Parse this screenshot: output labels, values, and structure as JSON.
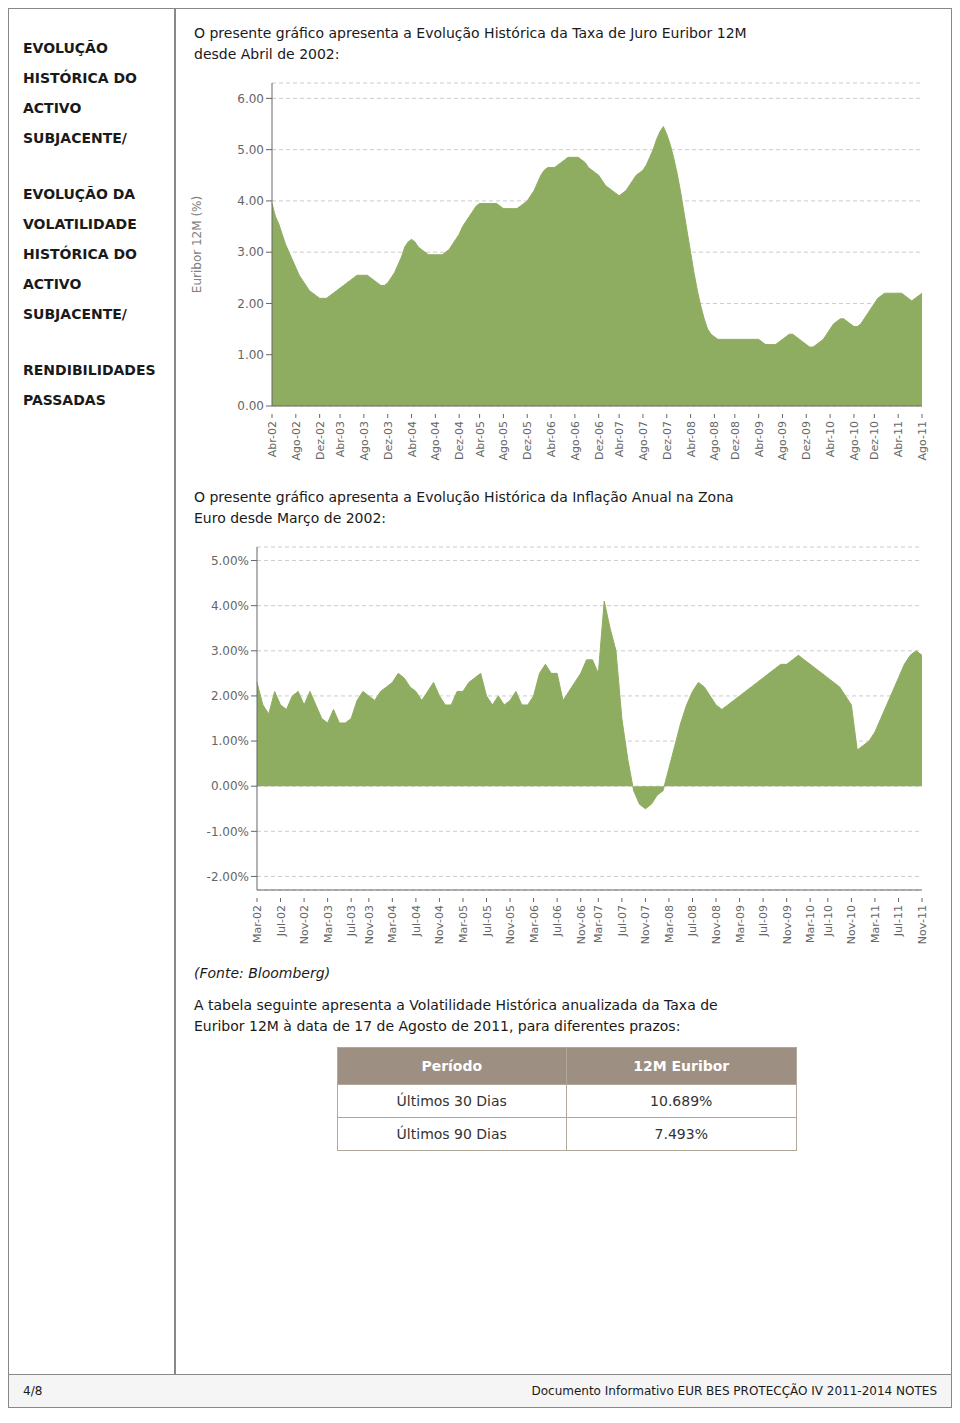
{
  "chart_data": [
    {
      "type": "area",
      "title": "O presente gráfico apresenta a Evolução Histórica da Taxa de Juro Euribor 12M\ndesde Abril de 2002:",
      "ylabel": "Euribor 12M (%)",
      "categories": [
        "Abr-02",
        null,
        null,
        null,
        null,
        null,
        null,
        "Ago-02",
        null,
        null,
        null,
        null,
        null,
        null,
        "Dez-02",
        null,
        null,
        null,
        null,
        null,
        "Abr-03",
        null,
        null,
        null,
        null,
        null,
        null,
        "Ago-03",
        null,
        null,
        null,
        null,
        null,
        null,
        "Dez-03",
        null,
        null,
        null,
        null,
        null,
        null,
        "Abr-04",
        null,
        null,
        null,
        null,
        null,
        null,
        "Ago-04",
        null,
        null,
        null,
        null,
        null,
        null,
        "Dez-04",
        null,
        null,
        null,
        null,
        null,
        "Abr-05",
        null,
        null,
        null,
        null,
        null,
        null,
        "Ago-05",
        null,
        null,
        null,
        null,
        null,
        null,
        "Dez-05",
        null,
        null,
        null,
        null,
        null,
        null,
        "Abr-06",
        null,
        null,
        null,
        null,
        null,
        null,
        "Ago-06",
        null,
        null,
        null,
        null,
        null,
        null,
        "Dez-06",
        null,
        null,
        null,
        null,
        null,
        "Abr-07",
        null,
        null,
        null,
        null,
        null,
        null,
        "Ago-07",
        null,
        null,
        null,
        null,
        null,
        null,
        "Dez-07",
        null,
        null,
        null,
        null,
        null,
        null,
        "Abr-08",
        null,
        null,
        null,
        null,
        null,
        null,
        "Ago-08",
        null,
        null,
        null,
        null,
        null,
        "Dez-08",
        null,
        null,
        null,
        null,
        null,
        null,
        "Abr-09",
        null,
        null,
        null,
        null,
        null,
        null,
        "Ago-09",
        null,
        null,
        null,
        null,
        null,
        null,
        "Dez-09",
        null,
        null,
        null,
        null,
        null,
        null,
        "Abr-10",
        null,
        null,
        null,
        null,
        null,
        null,
        "Ago-10",
        null,
        null,
        null,
        null,
        null,
        "Dez-10",
        null,
        null,
        null,
        null,
        null,
        null,
        "Abr-11",
        null,
        null,
        null,
        null,
        null,
        null,
        "Ago-11"
      ],
      "values": [
        3.95,
        3.7,
        3.55,
        3.35,
        3.15,
        3.0,
        2.85,
        2.7,
        2.55,
        2.45,
        2.35,
        2.25,
        2.2,
        2.15,
        2.1,
        2.1,
        2.1,
        2.15,
        2.2,
        2.25,
        2.3,
        2.35,
        2.4,
        2.45,
        2.5,
        2.55,
        2.55,
        2.55,
        2.55,
        2.5,
        2.45,
        2.4,
        2.35,
        2.35,
        2.4,
        2.5,
        2.6,
        2.75,
        2.9,
        3.1,
        3.2,
        3.25,
        3.2,
        3.1,
        3.05,
        3.0,
        2.95,
        2.95,
        2.95,
        2.95,
        2.95,
        3.0,
        3.05,
        3.15,
        3.25,
        3.35,
        3.5,
        3.6,
        3.7,
        3.8,
        3.9,
        3.95,
        3.95,
        3.95,
        3.95,
        3.95,
        3.95,
        3.9,
        3.85,
        3.85,
        3.85,
        3.85,
        3.85,
        3.9,
        3.95,
        4.0,
        4.1,
        4.2,
        4.35,
        4.5,
        4.6,
        4.65,
        4.65,
        4.65,
        4.7,
        4.75,
        4.8,
        4.85,
        4.85,
        4.85,
        4.85,
        4.8,
        4.75,
        4.65,
        4.6,
        4.55,
        4.5,
        4.4,
        4.3,
        4.25,
        4.2,
        4.15,
        4.1,
        4.15,
        4.2,
        4.3,
        4.4,
        4.5,
        4.55,
        4.6,
        4.7,
        4.85,
        5.0,
        5.2,
        5.35,
        5.45,
        5.3,
        5.1,
        4.85,
        4.55,
        4.2,
        3.8,
        3.4,
        3.0,
        2.6,
        2.25,
        1.95,
        1.7,
        1.5,
        1.4,
        1.35,
        1.3,
        1.3,
        1.3,
        1.3,
        1.3,
        1.3,
        1.3,
        1.3,
        1.3,
        1.3,
        1.3,
        1.3,
        1.3,
        1.25,
        1.2,
        1.2,
        1.2,
        1.2,
        1.25,
        1.3,
        1.35,
        1.4,
        1.4,
        1.35,
        1.3,
        1.25,
        1.2,
        1.15,
        1.15,
        1.2,
        1.25,
        1.3,
        1.4,
        1.5,
        1.6,
        1.65,
        1.7,
        1.7,
        1.65,
        1.6,
        1.55,
        1.55,
        1.6,
        1.7,
        1.8,
        1.9,
        2.0,
        2.1,
        2.15,
        2.2,
        2.2,
        2.2,
        2.2,
        2.2,
        2.2,
        2.15,
        2.1,
        2.05,
        2.1,
        2.15,
        2.2
      ],
      "color": "#8fad60",
      "ylim": [
        0,
        6.3
      ],
      "yticks": [
        {
          "value": 0,
          "label": "0.00"
        },
        {
          "value": 1,
          "label": "1.00"
        },
        {
          "value": 2,
          "label": "2.00"
        },
        {
          "value": 3,
          "label": "3.00"
        },
        {
          "value": 4,
          "label": "4.00"
        },
        {
          "value": 5,
          "label": "5.00"
        },
        {
          "value": 6,
          "label": "6.00"
        }
      ],
      "grid": true
    },
    {
      "type": "area",
      "title": "O presente gráfico apresenta a Evolução Histórica da Inflação Anual na Zona\nEuro desde Março de 2002:",
      "categories": [
        "Mar-02",
        null,
        null,
        null,
        "Jul-02",
        null,
        null,
        null,
        "Nov-02",
        null,
        null,
        null,
        "Mar-03",
        null,
        null,
        null,
        "Jul-03",
        null,
        null,
        "Nov-03",
        null,
        null,
        null,
        "Mar-04",
        null,
        null,
        null,
        "Jul-04",
        null,
        null,
        null,
        "Nov-04",
        null,
        null,
        null,
        "Mar-05",
        null,
        null,
        null,
        "Jul-05",
        null,
        null,
        null,
        "Nov-05",
        null,
        null,
        null,
        "Mar-06",
        null,
        null,
        null,
        "Jul-06",
        null,
        null,
        null,
        "Nov-06",
        null,
        null,
        "Mar-07",
        null,
        null,
        null,
        "Jul-07",
        null,
        null,
        null,
        "Nov-07",
        null,
        null,
        null,
        "Mar-08",
        null,
        null,
        null,
        "Jul-08",
        null,
        null,
        null,
        "Nov-08",
        null,
        null,
        null,
        "Mar-09",
        null,
        null,
        null,
        "Jul-09",
        null,
        null,
        null,
        "Nov-09",
        null,
        null,
        null,
        "Mar-10",
        null,
        null,
        "Jul-10",
        null,
        null,
        null,
        "Nov-10",
        null,
        null,
        null,
        "Mar-11",
        null,
        null,
        null,
        "Jul-11",
        null,
        null,
        null,
        "Nov-11"
      ],
      "values": [
        2.3,
        1.8,
        1.6,
        2.1,
        1.8,
        1.7,
        2.0,
        2.1,
        1.8,
        2.1,
        1.8,
        1.5,
        1.4,
        1.7,
        1.4,
        1.4,
        1.5,
        1.9,
        2.1,
        2.0,
        1.9,
        2.1,
        2.2,
        2.3,
        2.5,
        2.4,
        2.2,
        2.1,
        1.9,
        2.1,
        2.3,
        2.0,
        1.8,
        1.8,
        2.1,
        2.1,
        2.3,
        2.4,
        2.5,
        2.0,
        1.8,
        2.0,
        1.8,
        1.9,
        2.1,
        1.8,
        1.8,
        2.0,
        2.5,
        2.7,
        2.5,
        2.5,
        1.9,
        2.1,
        2.3,
        2.5,
        2.8,
        2.8,
        2.5,
        4.1,
        3.5,
        3.0,
        1.5,
        0.6,
        -0.1,
        -0.4,
        -0.5,
        -0.4,
        -0.2,
        -0.1,
        0.4,
        0.9,
        1.4,
        1.8,
        2.1,
        2.3,
        2.2,
        2.0,
        1.8,
        1.7,
        1.8,
        1.9,
        2.0,
        2.1,
        2.2,
        2.3,
        2.4,
        2.5,
        2.6,
        2.7,
        2.7,
        2.8,
        2.9,
        2.8,
        2.7,
        2.6,
        2.5,
        2.4,
        2.3,
        2.2,
        2.0,
        1.8,
        0.8,
        0.9,
        1.0,
        1.2,
        1.5,
        1.8,
        2.1,
        2.4,
        2.7,
        2.9,
        3.0,
        2.9
      ],
      "color": "#8fad60",
      "ylim": [
        -2.3,
        5.3
      ],
      "yticks": [
        {
          "value": -2,
          "label": "-2.00%"
        },
        {
          "value": -1,
          "label": "-1.00%"
        },
        {
          "value": 0,
          "label": "0.00%"
        },
        {
          "value": 1,
          "label": "1.00%"
        },
        {
          "value": 2,
          "label": "2.00%"
        },
        {
          "value": 3,
          "label": "3.00%"
        },
        {
          "value": 4,
          "label": "4.00%"
        },
        {
          "value": 5,
          "label": "5.00%"
        }
      ],
      "grid": true,
      "annotations": [
        "(Fonte: Bloomberg)"
      ]
    },
    {
      "type": "table",
      "title": "A tabela seguinte apresenta a Volatilidade Histórica anualizada da Taxa de\nEuribor 12M à data de 17 de Agosto de 2011, para diferentes prazos:",
      "header": [
        "Período",
        "12M Euribor"
      ],
      "rows": [
        [
          "Últimos 30 Dias",
          "10.689%"
        ],
        [
          "Últimos 90 Dias",
          "7.493%"
        ]
      ],
      "color": "#9d8f82"
    }
  ],
  "left_panel": [
    [
      "EVOLUÇÃO",
      "HISTÓRICA DO",
      "ACTIVO",
      "SUBJACENTE/"
    ],
    [
      "EVOLUÇÃO DA",
      "VOLATILIDADE",
      "HISTÓRICA DO",
      "ACTIVO",
      "SUBJACENTE/"
    ],
    [
      "RENDIBILIDADES",
      "PASSADAS"
    ]
  ],
  "footer": [
    "4/8",
    "Documento Informativo EUR BES PROTECÇÃO IV 2011-2014 NOTES"
  ]
}
